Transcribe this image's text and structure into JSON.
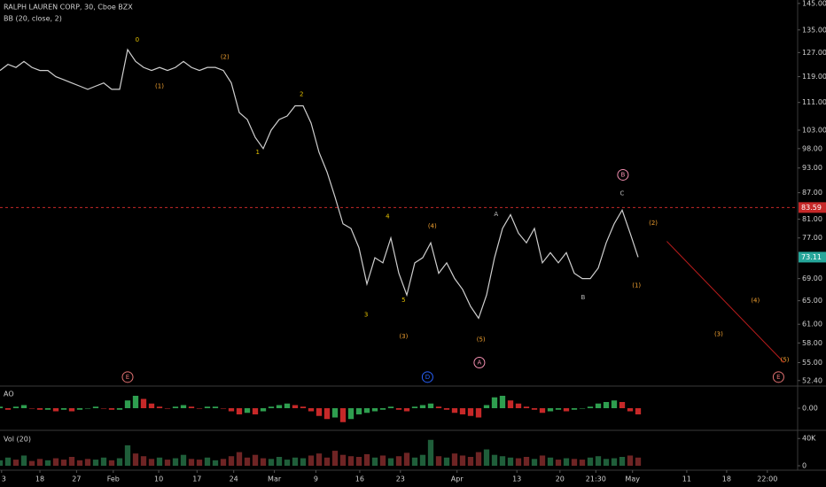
{
  "chart_data": [
    {
      "type": "line",
      "title": "RALPH LAUREN CORP, 30, Cboe BZX",
      "subtitle": "BB (20, close, 2)",
      "log_scale": true,
      "x": [
        0,
        1,
        2,
        3,
        4,
        5,
        6,
        7,
        8,
        9,
        10,
        11,
        12,
        13,
        14,
        15,
        16,
        17,
        18,
        19,
        20,
        21,
        22,
        23,
        24,
        25,
        26,
        27,
        28,
        29,
        30,
        31,
        32,
        33,
        34,
        35,
        36,
        37,
        38,
        39,
        40,
        41,
        42,
        43,
        44,
        45,
        46,
        47,
        48,
        49,
        50,
        51,
        52,
        53,
        54,
        55,
        56,
        57,
        58,
        59,
        60,
        61,
        62,
        63,
        64,
        65,
        66,
        67,
        68,
        69,
        70,
        71,
        72,
        73,
        74,
        75,
        76,
        77,
        78,
        79,
        80
      ],
      "series": [
        {
          "color": "#cfcfcf",
          "values": [
            121,
            123,
            122,
            124,
            122,
            121,
            121,
            119,
            118,
            117,
            116,
            115,
            116,
            117,
            115,
            115,
            128,
            124,
            122,
            121,
            122,
            121,
            122,
            124,
            122,
            121,
            122,
            122,
            121,
            117,
            108,
            106,
            101,
            98,
            103,
            106,
            107,
            110,
            110,
            105,
            97,
            92,
            86,
            80,
            79,
            75,
            68,
            73,
            72,
            77,
            70,
            66,
            72,
            73,
            76,
            70,
            72,
            69,
            67,
            64,
            62,
            66,
            73,
            79,
            82,
            78,
            76,
            79,
            72,
            74,
            72,
            74,
            70,
            69,
            69,
            71,
            76,
            80,
            83,
            78,
            73.11
          ]
        }
      ],
      "xlim": [
        0,
        100
      ],
      "xticks": [
        {
          "value": 0.2,
          "label": "3"
        },
        {
          "value": 5,
          "label": "18"
        },
        {
          "value": 9.6,
          "label": "27"
        },
        {
          "value": 14.2,
          "label": "Feb"
        },
        {
          "value": 19.9,
          "label": "10"
        },
        {
          "value": 24.7,
          "label": "17"
        },
        {
          "value": 29.3,
          "label": "24"
        },
        {
          "value": 34.4,
          "label": "Mar"
        },
        {
          "value": 39.6,
          "label": "9"
        },
        {
          "value": 45.1,
          "label": "16"
        },
        {
          "value": 50.2,
          "label": "23"
        },
        {
          "value": 57.3,
          "label": "Apr"
        },
        {
          "value": 64.8,
          "label": "13"
        },
        {
          "value": 70.2,
          "label": "20"
        },
        {
          "value": 74.7,
          "label": "21:30"
        },
        {
          "value": 79.3,
          "label": "May"
        },
        {
          "value": 86.1,
          "label": "11"
        },
        {
          "value": 91.1,
          "label": "18"
        },
        {
          "value": 96.2,
          "label": "22:00"
        }
      ],
      "ylim": [
        52,
        146
      ],
      "yticks": [
        {
          "value": 52.4,
          "label": "52.40"
        },
        {
          "value": 55,
          "label": "55.00"
        },
        {
          "value": 58,
          "label": "58.00"
        },
        {
          "value": 61,
          "label": "61.00"
        },
        {
          "value": 65,
          "label": "65.00"
        },
        {
          "value": 69,
          "label": "69.00"
        },
        {
          "value": 77,
          "label": "77.00"
        },
        {
          "value": 81,
          "label": "81.00"
        },
        {
          "value": 87,
          "label": "87.00"
        },
        {
          "value": 93,
          "label": "93.00"
        },
        {
          "value": 98,
          "label": "98.00"
        },
        {
          "value": 103,
          "label": "103.00"
        },
        {
          "value": 111,
          "label": "111.00"
        },
        {
          "value": 119,
          "label": "119.00"
        },
        {
          "value": 127,
          "label": "127.00"
        },
        {
          "value": 135,
          "label": "135.00"
        },
        {
          "value": 145,
          "label": "145.00"
        }
      ],
      "reference_line": {
        "value": 83.59,
        "label": "83.59",
        "color": "#c62828"
      },
      "last_price": {
        "value": 73.11,
        "label": "73.11",
        "color": "#26a69a"
      },
      "projection": {
        "x": [
          83.6,
          98.3
        ],
        "values": [
          76.3,
          55
        ],
        "color": "#b71c1c"
      },
      "annotations": [
        {
          "text": "0",
          "x": 17.2,
          "y": 131.5,
          "color": "#e6c200"
        },
        {
          "text": "(1)",
          "x": 20,
          "y": 116,
          "color": "#f0a030"
        },
        {
          "text": "(2)",
          "x": 28.2,
          "y": 125.5,
          "color": "#f0a030"
        },
        {
          "text": "1",
          "x": 32.3,
          "y": 97,
          "color": "#e6c200"
        },
        {
          "text": "2",
          "x": 37.8,
          "y": 113.5,
          "color": "#e6c200"
        },
        {
          "text": "3",
          "x": 45.9,
          "y": 62.6,
          "color": "#e6c200"
        },
        {
          "text": "4",
          "x": 48.6,
          "y": 81.6,
          "color": "#e6c200"
        },
        {
          "text": "5",
          "x": 50.6,
          "y": 65.1,
          "color": "#e6c200"
        },
        {
          "text": "(3)",
          "x": 50.6,
          "y": 59,
          "color": "#f0a030"
        },
        {
          "text": "(4)",
          "x": 54.2,
          "y": 79.5,
          "color": "#f0a030"
        },
        {
          "text": "(5)",
          "x": 60.3,
          "y": 58.5,
          "color": "#f0a030"
        },
        {
          "text": "A",
          "x": 62.2,
          "y": 82.1,
          "color": "#bdbdbd"
        },
        {
          "text": "A",
          "x": 60.1,
          "y": 55,
          "color": "#f48fb1",
          "circled": true
        },
        {
          "text": "B",
          "x": 73.1,
          "y": 65.6,
          "color": "#bdbdbd"
        },
        {
          "text": "C",
          "x": 78,
          "y": 86.8,
          "color": "#bdbdbd"
        },
        {
          "text": "B",
          "x": 78.1,
          "y": 91.3,
          "color": "#f48fb1",
          "circled": true
        },
        {
          "text": "(1)",
          "x": 79.8,
          "y": 67.7,
          "color": "#f0a030"
        },
        {
          "text": "(2)",
          "x": 81.9,
          "y": 80.1,
          "color": "#f0a030"
        },
        {
          "text": "(3)",
          "x": 90.1,
          "y": 59.4,
          "color": "#f0a030"
        },
        {
          "text": "(4)",
          "x": 94.7,
          "y": 65,
          "color": "#f0a030"
        },
        {
          "text": "(5)",
          "x": 98.4,
          "y": 55.4,
          "color": "#f0a030"
        },
        {
          "text": "E",
          "x": 16,
          "y": 52.9,
          "color": "#e57373",
          "circled": true
        },
        {
          "text": "D",
          "x": 53.6,
          "y": 52.9,
          "color": "#2962ff",
          "circled": true
        },
        {
          "text": "E",
          "x": 97.6,
          "y": 52.9,
          "color": "#e57373",
          "circled": true
        }
      ]
    },
    {
      "type": "bar",
      "title": "AO",
      "colors": {
        "up": "#2e9e4f",
        "down": "#c62828"
      },
      "values": [
        1,
        -1,
        1,
        2,
        0,
        -1,
        -1,
        -2,
        -1,
        -2,
        -1,
        0,
        1,
        0,
        -1,
        -1,
        5,
        8,
        6,
        3,
        1,
        0,
        1,
        2,
        1,
        0,
        1,
        1,
        0,
        -2,
        -4,
        -3,
        -4,
        -2,
        1,
        2,
        3,
        2,
        1,
        -2,
        -5,
        -7,
        -6,
        -9,
        -7,
        -4,
        -3,
        -2,
        -1,
        1,
        -1,
        -2,
        1,
        2,
        3,
        1,
        -1,
        -3,
        -4,
        -5,
        -6,
        2,
        7,
        8,
        5,
        3,
        1,
        -1,
        -3,
        -2,
        -1,
        -2,
        -1,
        0,
        1,
        3,
        4,
        5,
        4,
        -2,
        -4
      ],
      "ylim": [
        -12,
        12
      ],
      "yticks": [
        {
          "value": 0,
          "label": "0.00"
        }
      ]
    },
    {
      "type": "bar",
      "title": "Vol (20)",
      "colors": {
        "up": "#1f5e3a",
        "down": "#6e2424"
      },
      "values": [
        8000,
        12000,
        9000,
        15000,
        7000,
        10000,
        8000,
        11000,
        9000,
        13000,
        8000,
        10000,
        9000,
        12000,
        8000,
        11000,
        30000,
        18000,
        14000,
        10000,
        12000,
        9000,
        11000,
        16000,
        10000,
        9000,
        12000,
        8000,
        10000,
        14000,
        20000,
        12000,
        16000,
        11000,
        10000,
        13000,
        9000,
        12000,
        11000,
        15000,
        18000,
        12000,
        22000,
        16000,
        14000,
        13000,
        17000,
        12000,
        15000,
        11000,
        14000,
        19000,
        12000,
        16000,
        38000,
        14000,
        12000,
        18000,
        15000,
        13000,
        20000,
        24000,
        16000,
        14000,
        12000,
        11000,
        13000,
        10000,
        15000,
        12000,
        9000,
        11000,
        10000,
        9000,
        12000,
        14000,
        10000,
        11000,
        13000,
        15000,
        12000
      ],
      "ylim": [
        0,
        52000
      ],
      "yticks": [
        0,
        {
          "value": 40000,
          "label": "40K"
        }
      ]
    }
  ]
}
